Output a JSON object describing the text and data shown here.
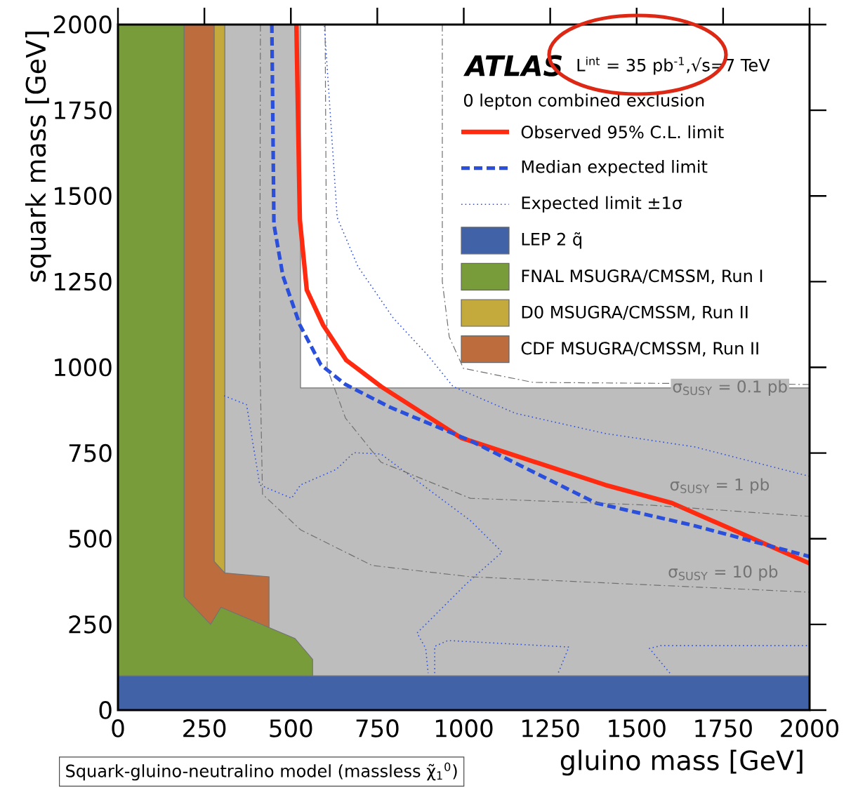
{
  "chart_data": {
    "type": "line",
    "xlabel": "gluino mass [GeV]",
    "ylabel": "squark mass [GeV]",
    "legend_title": "0 lepton combined exclusion",
    "xlim": [
      0,
      2000
    ],
    "ylim": [
      0,
      2000
    ],
    "xticks": [
      0,
      250,
      500,
      750,
      1000,
      1250,
      1500,
      1750,
      2000
    ],
    "yticks": [
      0,
      250,
      500,
      750,
      1000,
      1250,
      1500,
      1750,
      2000
    ],
    "grid": false,
    "legend": "top right",
    "marker": "none",
    "series": [
      {
        "name": "Observed 95% C.L. limit",
        "color": "#ff2a10",
        "line_style": "solid",
        "x": [
          516,
          526,
          546,
          593,
          660,
          761,
          993,
          1409,
          1602,
          2000
        ],
        "values": [
          2000,
          1431,
          1226,
          1124,
          1021,
          944,
          794,
          657,
          604,
          428
        ]
      },
      {
        "name": "Median expected limit",
        "color": "#2a4fdc",
        "line_style": "dashed",
        "x": [
          445,
          451,
          477,
          526,
          587,
          658,
          786,
          1019,
          1383,
          1667,
          2000
        ],
        "values": [
          2000,
          1417,
          1267,
          1124,
          1007,
          950,
          884,
          786,
          604,
          538,
          448
        ]
      },
      {
        "name": "Expected limit ±1σ",
        "color": "#3050e0",
        "line_style": "dotted",
        "x": [
          597,
          634,
          694,
          796,
          897,
          969,
          1149,
          1409,
          1667,
          2000
        ],
        "values": [
          1996,
          1437,
          1294,
          1144,
          1034,
          944,
          866,
          807,
          768,
          682
        ]
      },
      {
        "color": "#3050e0",
        "line_style": "dotted",
        "x": [
          307,
          372,
          410,
          502,
          528,
          631,
          682,
          761,
          1019,
          1111,
          1007,
          865,
          890,
          897,
          null,
          916,
          916,
          954,
          1304,
          1273,
          null,
          1596,
          1537,
          1570,
          2000
        ],
        "values": [
          917,
          891,
          657,
          618,
          657,
          702,
          751,
          747,
          553,
          461,
          368,
          225,
          180,
          108,
          null,
          108,
          186,
          203,
          184,
          108,
          null,
          108,
          180,
          188,
          188
        ]
      },
      {
        "color": "#707070",
        "line_style": "dashdot",
        "x": [
          938,
          938,
          958,
          999,
          1201,
          2000
        ],
        "values": [
          2000,
          1250,
          1089,
          997,
          956,
          950
        ]
      },
      {
        "color": "#707070",
        "line_style": "dashdot",
        "x": [
          599,
          605,
          658,
          761,
          1019,
          1537,
          2000
        ],
        "values": [
          2000,
          997,
          852,
          723,
          618,
          598,
          565
        ]
      },
      {
        "color": "#707070",
        "line_style": "dashdot",
        "x": [
          412,
          410,
          418,
          528,
          735,
          1019,
          2000
        ],
        "values": [
          2000,
          1048,
          630,
          526,
          422,
          389,
          344
        ]
      },
      {
        "name": "LEP 2 q̃",
        "type": "area",
        "color": "#4262a8",
        "x": [
          0,
          2000
        ],
        "values": [
          100,
          100
        ]
      },
      {
        "name": "FNAL MSUGRA/CMSSM, Run I",
        "type": "area",
        "color": "#789c3a",
        "x": [
          0,
          191,
          191,
          268,
          298,
          512,
          563
        ],
        "values": [
          2000,
          2000,
          331,
          250,
          300,
          209,
          148
        ]
      },
      {
        "name": "D0 MSUGRA/CMSSM, Run II",
        "type": "area",
        "color": "#c4aa3c",
        "x": [
          278,
          309
        ],
        "values": [
          2000,
          2000
        ]
      },
      {
        "name": "CDF MSUGRA/CMSSM, Run II",
        "type": "area",
        "color": "#bd6c3e",
        "x": [
          191,
          278,
          278,
          309,
          437
        ],
        "values": [
          2000,
          2000,
          434,
          400,
          389
        ]
      },
      {
        "type": "area",
        "color": "#bdbdbd",
        "x": [
          0,
          528,
          528,
          2000
        ],
        "values": [
          2000,
          2000,
          940,
          940
        ]
      }
    ],
    "annotations": [
      "ATLAS",
      "L$^{int}$ = 35 pb$^{-1}$,√s=7 TeV",
      "Squark-gluino-neutralino model (massless χ̃$_{1}$$^{0}$)",
      "σ$_{SUSY}$ = 0.1 pb",
      "σ$_{SUSY}$ = 1 pb",
      "σ$_{SUSY}$ = 10 pb"
    ]
  }
}
